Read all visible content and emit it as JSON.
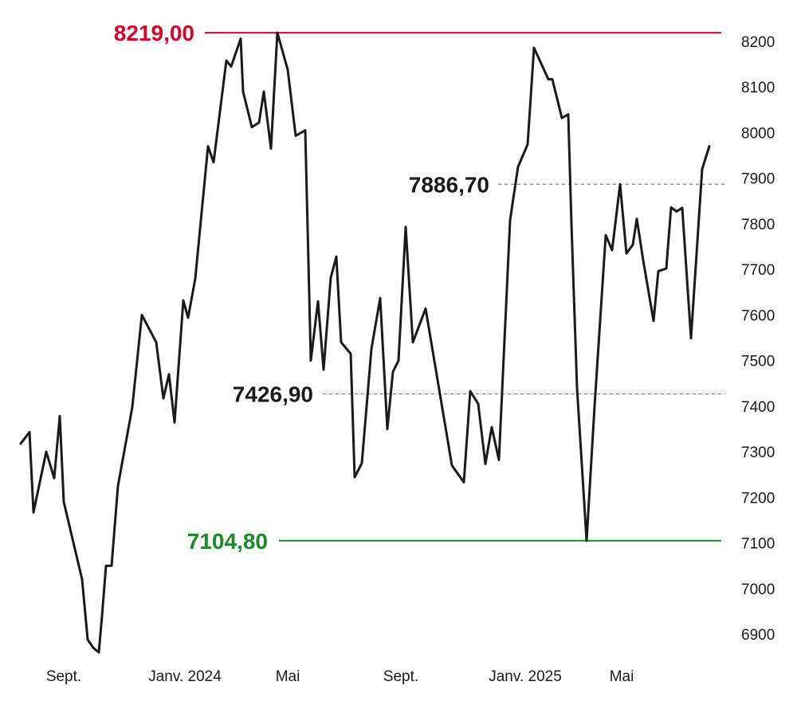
{
  "chart_data": {
    "type": "line",
    "y_axis": {
      "position": "right",
      "ylim": [
        6850,
        8230
      ],
      "ticks": [
        6900,
        7000,
        7100,
        7200,
        7300,
        7400,
        7500,
        7600,
        7700,
        7800,
        7900,
        8000,
        8100,
        8200
      ]
    },
    "x_axis": {
      "labels": [
        "Sept.",
        "Janv. 2024",
        "Mai",
        "Sept.",
        "Janv. 2025",
        "Mai"
      ],
      "label_x": [
        80,
        232,
        361,
        503,
        659,
        780
      ]
    },
    "series": [
      {
        "color": "#1a1a1a",
        "points": [
          [
            26,
            7318
          ],
          [
            37,
            7343
          ],
          [
            42,
            7167
          ],
          [
            58,
            7300
          ],
          [
            68,
            7242
          ],
          [
            75,
            7378
          ],
          [
            80,
            7190
          ],
          [
            103,
            7020
          ],
          [
            110,
            6888
          ],
          [
            117,
            6870
          ],
          [
            124,
            6860
          ],
          [
            128,
            6940
          ],
          [
            133,
            7050
          ],
          [
            140,
            7050
          ],
          [
            148,
            7225
          ],
          [
            166,
            7398
          ],
          [
            178,
            7600
          ],
          [
            196,
            7540
          ],
          [
            205,
            7417
          ],
          [
            212,
            7470
          ],
          [
            219,
            7364
          ],
          [
            230,
            7632
          ],
          [
            236,
            7594
          ],
          [
            245,
            7680
          ],
          [
            261,
            7970
          ],
          [
            268,
            7935
          ],
          [
            284,
            8158
          ],
          [
            290,
            8145
          ],
          [
            302,
            8206
          ],
          [
            305,
            8090
          ],
          [
            316,
            8012
          ],
          [
            325,
            8022
          ],
          [
            331,
            8090
          ],
          [
            340,
            7965
          ],
          [
            348,
            8219
          ],
          [
            361,
            8138
          ],
          [
            371,
            7993
          ],
          [
            383,
            8005
          ],
          [
            390,
            7500
          ],
          [
            399,
            7630
          ],
          [
            406,
            7480
          ],
          [
            415,
            7682
          ],
          [
            422,
            7728
          ],
          [
            428,
            7540
          ],
          [
            440,
            7515
          ],
          [
            445,
            7244
          ],
          [
            454,
            7275
          ],
          [
            466,
            7525
          ],
          [
            477,
            7637
          ],
          [
            486,
            7350
          ],
          [
            493,
            7475
          ],
          [
            500,
            7500
          ],
          [
            509,
            7793
          ],
          [
            518,
            7540
          ],
          [
            534,
            7614
          ],
          [
            567,
            7270
          ],
          [
            582,
            7233
          ],
          [
            590,
            7433
          ],
          [
            600,
            7405
          ],
          [
            609,
            7273
          ],
          [
            617,
            7354
          ],
          [
            626,
            7282
          ],
          [
            640,
            7808
          ],
          [
            650,
            7925
          ],
          [
            662,
            7974
          ],
          [
            670,
            8186
          ],
          [
            688,
            8117
          ],
          [
            693,
            8117
          ],
          [
            705,
            8032
          ],
          [
            713,
            8040
          ],
          [
            717,
            7800
          ],
          [
            724,
            7440
          ],
          [
            736,
            7104.8
          ],
          [
            746,
            7400
          ],
          [
            760,
            7775
          ],
          [
            768,
            7742
          ],
          [
            778,
            7886.7
          ],
          [
            786,
            7735
          ],
          [
            794,
            7754
          ],
          [
            799,
            7811
          ],
          [
            807,
            7720
          ],
          [
            820,
            7587
          ],
          [
            826,
            7696
          ],
          [
            836,
            7702
          ],
          [
            842,
            7836
          ],
          [
            849,
            7827
          ],
          [
            856,
            7835
          ],
          [
            867,
            7549
          ],
          [
            881,
            7920
          ],
          [
            890,
            7970
          ]
        ]
      }
    ],
    "annotations": [
      {
        "label": "8219,00",
        "value": 8219.0,
        "color": "#d90429",
        "style": "solid",
        "line_x": [
          257,
          905
        ],
        "label_x": 244
      },
      {
        "label": "7886,70",
        "value": 7886.7,
        "color": "#7a7a7a",
        "style": "dashed",
        "line_x": [
          625,
          910
        ],
        "label_x": 614,
        "text_color": "#1a1a1a"
      },
      {
        "label": "7426,90",
        "value": 7426.9,
        "color": "#7a7a7a",
        "style": "dashed",
        "line_x": [
          405,
          910
        ],
        "label_x": 393,
        "text_color": "#1a1a1a"
      },
      {
        "label": "7104,80",
        "value": 7104.8,
        "color": "#1a8a2a",
        "style": "solid",
        "line_x": [
          350,
          905
        ],
        "label_x": 336
      }
    ]
  }
}
